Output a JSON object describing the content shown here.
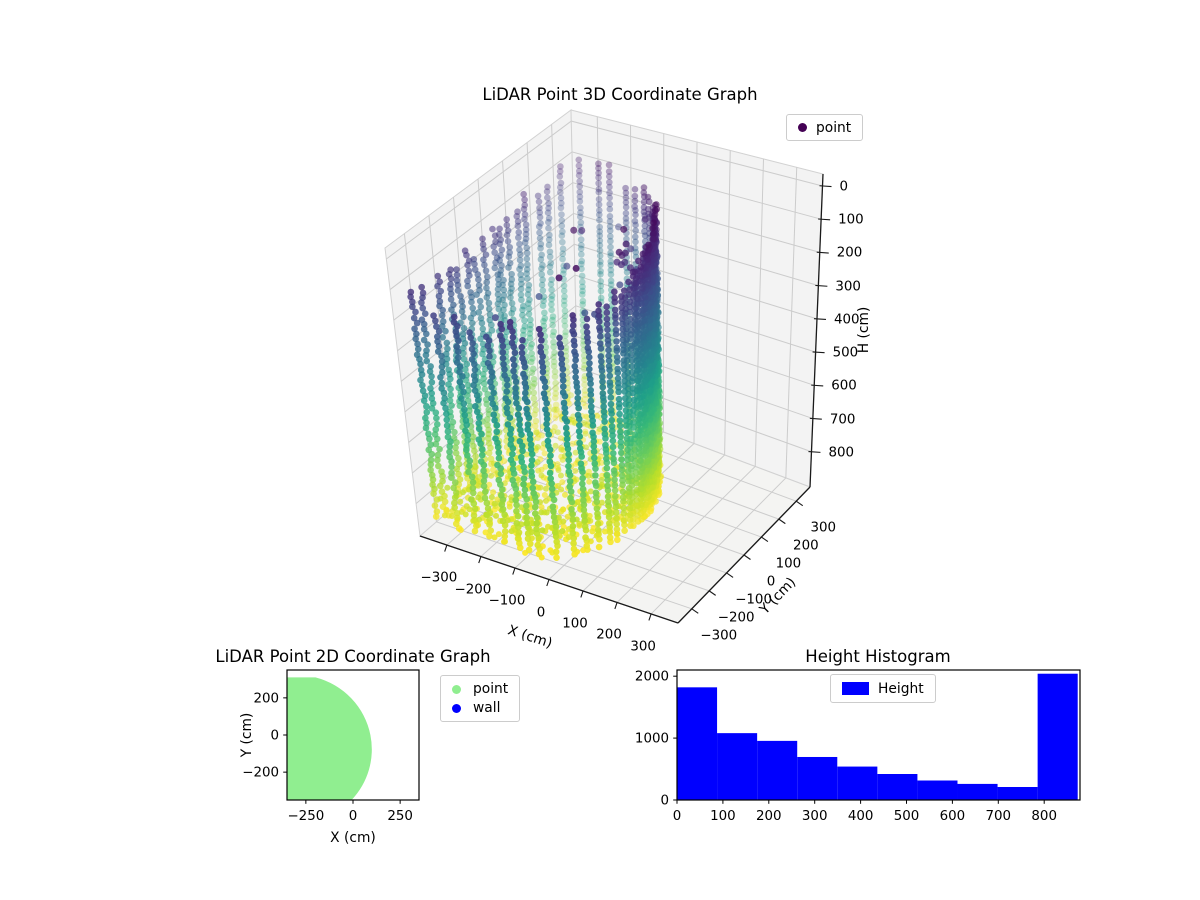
{
  "figure": {
    "background": "#ffffff"
  },
  "chart_data": [
    {
      "type": "scatter3d",
      "title": "LiDAR Point 3D Coordinate Graph",
      "legend_label": "point",
      "legend_marker_color": "#440154",
      "xlabel": "X (cm)",
      "ylabel": "Y (cm)",
      "zlabel": "H (cm)",
      "xticks": [
        -300,
        -200,
        -100,
        0,
        100,
        200,
        300
      ],
      "yticks": [
        -300,
        -200,
        -100,
        0,
        100,
        200,
        300
      ],
      "zticks": [
        0,
        100,
        200,
        300,
        400,
        500,
        600,
        700,
        800
      ],
      "xlim": [
        -379,
        379
      ],
      "ylim": [
        -379,
        379
      ],
      "zlim": [
        -36,
        906
      ],
      "zaxis_inverted": true,
      "colormap": "viridis",
      "viridis_stops": [
        "#440154",
        "#482878",
        "#3e4a89",
        "#31688e",
        "#26828e",
        "#1f9e89",
        "#35b779",
        "#6dcd59",
        "#b4de2c",
        "#fde725"
      ],
      "point_cloud": {
        "description": "LiDAR room scan: walls colored by height H 0(top,dark)..870(floor,yellow)",
        "lidar_origin": [
          0,
          0
        ],
        "room_circle_center": [
          -300,
          -77
        ],
        "room_circle_radius": 400,
        "top_wall_y": 310,
        "clip_x_min": -350,
        "clip_y_min": -350,
        "height_range": [
          0,
          870
        ],
        "wall_columns": 64,
        "wall_dz": 17,
        "floor_height_min": 788,
        "floor_grid_step": 22,
        "ceiling_points": 26,
        "seed": 13
      }
    },
    {
      "type": "scatter",
      "title": "LiDAR Point 2D Coordinate Graph",
      "xlabel": "X (cm)",
      "ylabel": "Y (cm)",
      "xticks": [
        -250,
        0,
        250
      ],
      "yticks": [
        200,
        0,
        -200
      ],
      "xlim": [
        -350,
        350
      ],
      "ylim": [
        -350,
        350
      ],
      "series": [
        {
          "label": "point",
          "color": "#90ee90"
        },
        {
          "label": "wall",
          "color": "#0000ff"
        }
      ],
      "region": {
        "circle_center": [
          -300,
          -77
        ],
        "circle_radius": 400,
        "top_wall_y": 310,
        "clip_x_min": -350,
        "clip_y_min": -350
      }
    },
    {
      "type": "histogram",
      "title": "Height Histogram",
      "legend_label": "Height",
      "bar_color": "#0000ff",
      "bin_edges": [
        0,
        87.3,
        174.6,
        261.9,
        349.2,
        436.5,
        523.8,
        611.1,
        698.4,
        785.7,
        873
      ],
      "counts": [
        1820,
        1080,
        955,
        695,
        540,
        420,
        315,
        260,
        210,
        2040
      ],
      "xticks": [
        0,
        100,
        200,
        300,
        400,
        500,
        600,
        700,
        800
      ],
      "yticks": [
        0,
        1000,
        2000
      ],
      "xlim": [
        0,
        878
      ],
      "ylim": [
        0,
        2100
      ]
    }
  ]
}
